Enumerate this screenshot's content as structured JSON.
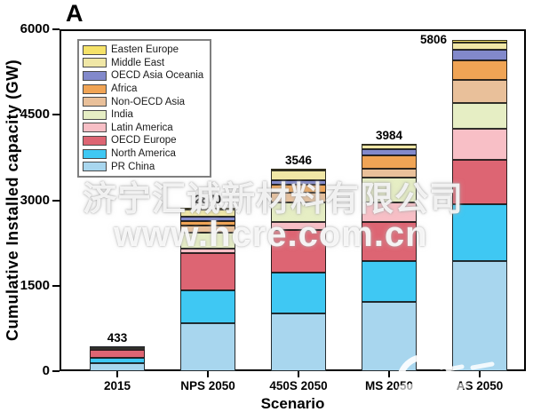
{
  "panel_label": "A",
  "watermark": {
    "line1": "济宁汇诚新材料有限公司",
    "line2": "www.hcre.com.cn"
  },
  "chart_data": {
    "type": "bar",
    "stacked": true,
    "xlabel": "Scenario",
    "ylabel": "Cumulative Installed capacity (GW)",
    "ylim": [
      0,
      6000
    ],
    "yticks": [
      0,
      1500,
      3000,
      4500,
      6000
    ],
    "grid": false,
    "legend_position": "top-left",
    "categories": [
      "2015",
      "NPS 2050",
      "450S 2050",
      "MS 2050",
      "AS 2050"
    ],
    "totals": [
      433,
      2870,
      3546,
      3984,
      5806
    ],
    "series": [
      {
        "name": "PR China",
        "color": "#a8d6ee",
        "values": [
          142,
          847,
          1009,
          1208,
          1930
        ]
      },
      {
        "name": "North America",
        "color": "#3fc8f3",
        "values": [
          86,
          572,
          719,
          730,
          1000
        ]
      },
      {
        "name": "OECD Europe",
        "color": "#dd6573",
        "values": [
          150,
          652,
          745,
          677,
          781
        ]
      },
      {
        "name": "Latin America",
        "color": "#f8bfc6",
        "values": [
          16,
          73,
          141,
          339,
          547
        ]
      },
      {
        "name": "India",
        "color": "#e6eec4",
        "values": [
          25,
          291,
          339,
          442,
          453
        ]
      },
      {
        "name": "Non-OECD Asia",
        "color": "#e9c09a",
        "values": [
          4,
          120,
          181,
          156,
          406
        ]
      },
      {
        "name": "Africa",
        "color": "#f0a455",
        "values": [
          3,
          73,
          131,
          234,
          339
        ]
      },
      {
        "name": "OECD Asia Oceania",
        "color": "#8289cb",
        "values": [
          5,
          78,
          78,
          105,
          181
        ]
      },
      {
        "name": "Middle East",
        "color": "#f0e7a6",
        "values": [
          1,
          134,
          181,
          80,
          131
        ]
      },
      {
        "name": "Easten Europe",
        "color": "#f5e269",
        "values": [
          1,
          30,
          22,
          13,
          38
        ]
      }
    ],
    "legend_items": [
      "Easten Europe",
      "Middle East",
      "OECD Asia Oceania",
      "Africa",
      "Non-OECD Asia",
      "India",
      "Latin America",
      "OECD Europe",
      "North America",
      "PR China"
    ]
  }
}
